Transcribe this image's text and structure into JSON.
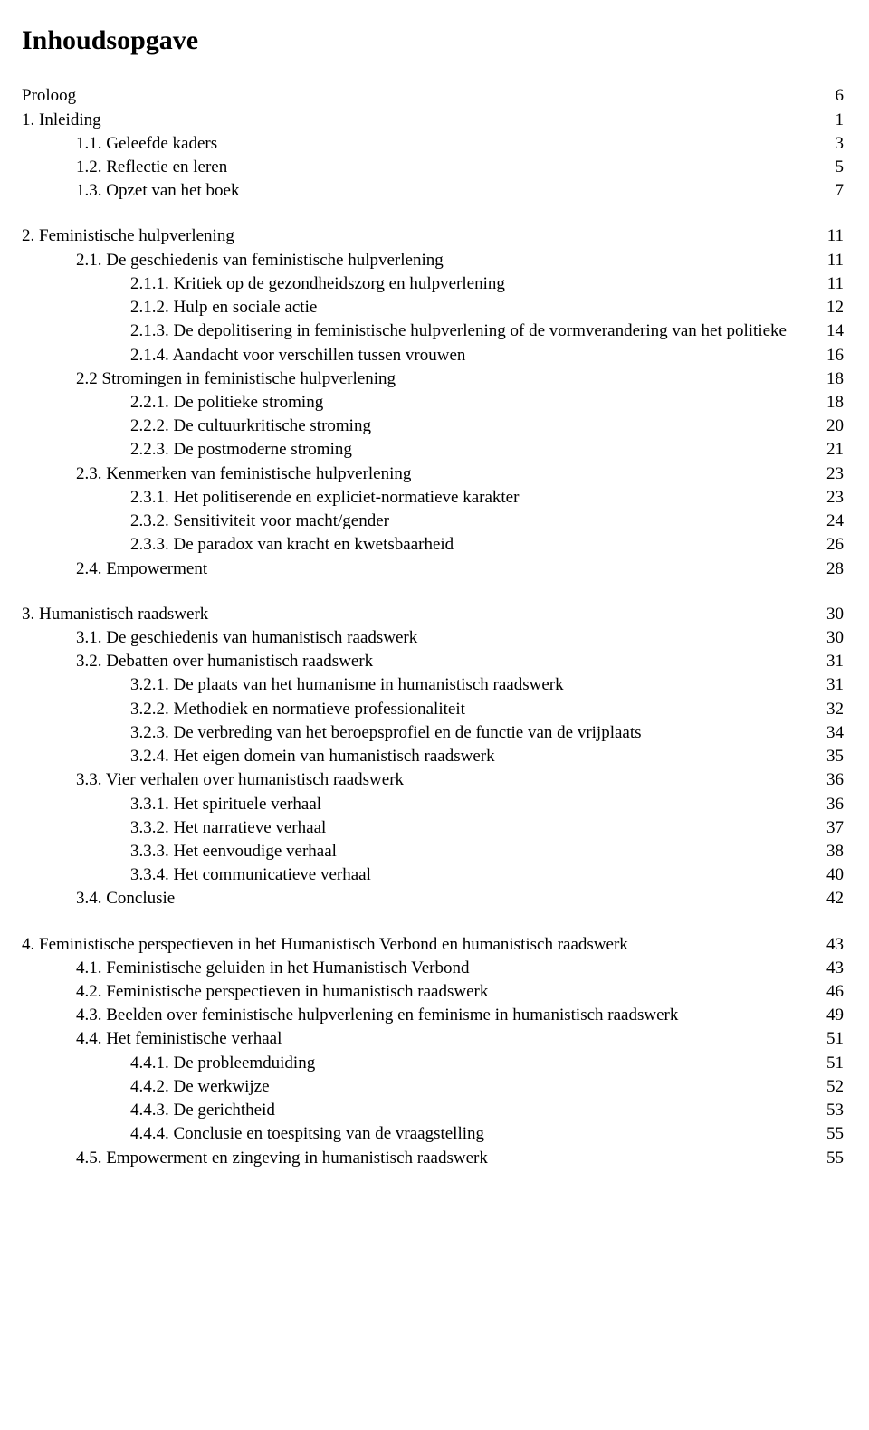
{
  "title": "Inhoudsopgave",
  "toc": {
    "proloog": {
      "label": "Proloog",
      "page": "6"
    },
    "s1": {
      "label": "1. Inleiding",
      "page": "1"
    },
    "s11": {
      "label": "1.1. Geleefde kaders",
      "page": "3"
    },
    "s12": {
      "label": "1.2. Reflectie en leren",
      "page": "5"
    },
    "s13": {
      "label": "1.3. Opzet van het boek",
      "page": "7"
    },
    "s2": {
      "label": "2. Feministische hulpverlening",
      "page": "11"
    },
    "s21": {
      "label": "2.1. De geschiedenis van feministische hulpverlening",
      "page": "11"
    },
    "s211": {
      "label": "2.1.1. Kritiek op de gezondheidszorg en hulpverlening",
      "page": "11"
    },
    "s212": {
      "label": "2.1.2. Hulp en sociale actie",
      "page": "12"
    },
    "s213": {
      "label": "2.1.3. De depolitisering in feministische hulpverlening of de vormverandering van het politieke",
      "page": "14"
    },
    "s214": {
      "label": "2.1.4. Aandacht voor verschillen tussen vrouwen",
      "page": "16"
    },
    "s22": {
      "label": "2.2  Stromingen in feministische hulpverlening",
      "page": "18"
    },
    "s221": {
      "label": "2.2.1. De politieke stroming",
      "page": "18"
    },
    "s222": {
      "label": "2.2.2. De cultuurkritische stroming",
      "page": "20"
    },
    "s223": {
      "label": "2.2.3. De postmoderne stroming",
      "page": "21"
    },
    "s23": {
      "label": "2.3.  Kenmerken van feministische hulpverlening",
      "page": "23"
    },
    "s231": {
      "label": "2.3.1. Het politiserende en expliciet-normatieve karakter",
      "page": "23"
    },
    "s232": {
      "label": "2.3.2. Sensitiviteit voor macht/gender",
      "page": "24"
    },
    "s233": {
      "label": "2.3.3. De paradox van kracht en kwetsbaarheid",
      "page": "26"
    },
    "s24": {
      "label": "2.4.  Empowerment",
      "page": "28"
    },
    "s3": {
      "label": "3. Humanistisch raadswerk",
      "page": "30"
    },
    "s31": {
      "label": "3.1. De geschiedenis van humanistisch raadswerk",
      "page": "30"
    },
    "s32": {
      "label": "3.2. Debatten over humanistisch raadswerk",
      "page": "31"
    },
    "s321": {
      "label": "3.2.1. De plaats van het humanisme in humanistisch raadswerk",
      "page": "31"
    },
    "s322": {
      "label": "3.2.2. Methodiek en normatieve professionaliteit",
      "page": "32"
    },
    "s323": {
      "label": "3.2.3. De verbreding van het beroepsprofiel en de functie van de vrijplaats",
      "page": "34"
    },
    "s324": {
      "label": "3.2.4. Het eigen domein van humanistisch raadswerk",
      "page": "35"
    },
    "s33": {
      "label": "3.3. Vier verhalen over humanistisch raadswerk",
      "page": "36"
    },
    "s331": {
      "label": "3.3.1. Het spirituele verhaal",
      "page": "36"
    },
    "s332": {
      "label": "3.3.2. Het narratieve verhaal",
      "page": "37"
    },
    "s333": {
      "label": "3.3.3. Het eenvoudige verhaal",
      "page": "38"
    },
    "s334": {
      "label": "3.3.4. Het communicatieve verhaal",
      "page": "40"
    },
    "s34": {
      "label": "3.4. Conclusie",
      "page": "42"
    },
    "s4": {
      "label": "4. Feministische perspectieven in het Humanistisch Verbond en humanistisch raadswerk",
      "page": "43"
    },
    "s41": {
      "label": "4.1. Feministische geluiden in het Humanistisch Verbond",
      "page": "43"
    },
    "s42": {
      "label": "4.2. Feministische perspectieven in humanistisch raadswerk",
      "page": "46"
    },
    "s43": {
      "label": "4.3. Beelden over feministische hulpverlening en feminisme in humanistisch raadswerk",
      "page": "49"
    },
    "s44": {
      "label": "4.4. Het feministische verhaal",
      "page": "51"
    },
    "s441": {
      "label": "4.4.1. De probleemduiding",
      "page": "51"
    },
    "s442": {
      "label": "4.4.2. De werkwijze",
      "page": "52"
    },
    "s443": {
      "label": "4.4.3. De gerichtheid",
      "page": "53"
    },
    "s444": {
      "label": "4.4.4. Conclusie en toespitsing van de vraagstelling",
      "page": "55"
    },
    "s45": {
      "label": "4.5. Empowerment en zingeving in humanistisch raadswerk",
      "page": "55"
    }
  }
}
